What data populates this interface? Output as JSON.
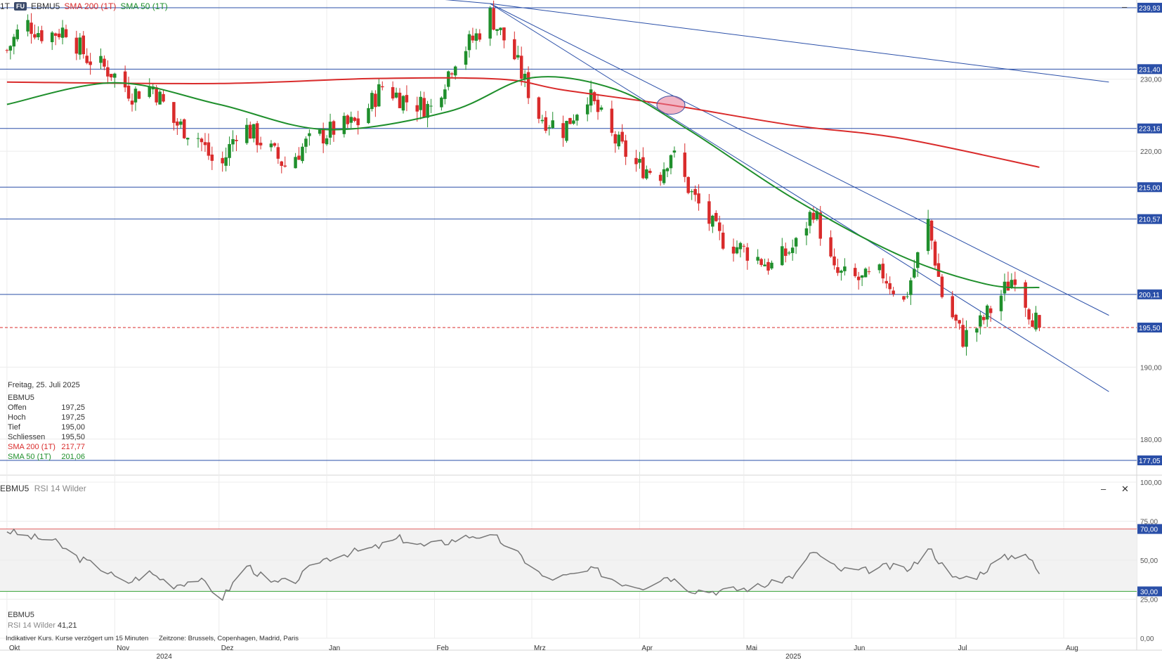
{
  "header": {
    "timeframe": "1T",
    "badge": "FU",
    "symbol": "EBMU5",
    "sma200_label": "SMA 200 (1T)",
    "sma50_label": "SMA 50 (1T)"
  },
  "colors": {
    "up": "#1f8f2c",
    "down": "#d92b2b",
    "sma200": "#d92b2b",
    "sma50": "#1f8f2c",
    "level_line": "#2a4fa8",
    "trend_line": "#2a4fa8",
    "rsi_line": "#777777",
    "rsi_upper": "#e06060",
    "rsi_lower": "#3aa43a"
  },
  "info_panel": {
    "date": "Freitag, 25. Juli 2025",
    "symbol": "EBMU5",
    "rows": [
      {
        "label": "Offen",
        "value": "197,25"
      },
      {
        "label": "Hoch",
        "value": "197,25"
      },
      {
        "label": "Tief",
        "value": "195,00"
      },
      {
        "label": "Schliessen",
        "value": "195,50"
      },
      {
        "label": "SMA 200 (1T)",
        "value": "217,77"
      },
      {
        "label": "SMA 50 (1T)",
        "value": "201,06"
      }
    ]
  },
  "rsi_header": {
    "symbol": "EBMU5",
    "indicator": "RSI 14 Wilder"
  },
  "rsi_info": {
    "symbol": "EBMU5",
    "indicator": "RSI 14 Wilder",
    "value": "41,21"
  },
  "footer": {
    "note": "Indikativer Kurs. Kurse verzögert um 15 Minuten",
    "timezone": "Zeitzone: Brussels, Copenhagen, Madrid, Paris"
  },
  "controls": {
    "minimize": "–",
    "close": "✕"
  },
  "chart_data": [
    {
      "type": "candlestick",
      "yaxis": {
        "ylim": [
          175,
          241
        ],
        "ticks": [
          "230,00",
          "220,00",
          "190,00",
          "180,00"
        ],
        "tick_values": [
          230,
          220,
          190,
          180
        ]
      },
      "xaxis": {
        "labels": [
          {
            "label": "Okt",
            "date": "2024-10-01"
          },
          {
            "label": "Nov",
            "date": "2024-11-01"
          },
          {
            "label": "Dez",
            "date": "2024-12-01"
          },
          {
            "label": "Jan",
            "date": "2025-01-01"
          },
          {
            "label": "Feb",
            "date": "2025-02-01"
          },
          {
            "label": "Mrz",
            "date": "2025-03-01"
          },
          {
            "label": "Apr",
            "date": "2025-04-01"
          },
          {
            "label": "Mai",
            "date": "2025-05-01"
          },
          {
            "label": "Jun",
            "date": "2025-06-01"
          },
          {
            "label": "Jul",
            "date": "2025-07-01"
          },
          {
            "label": "Aug",
            "date": "2025-08-01"
          }
        ],
        "year_labels": [
          {
            "label": "2024",
            "date": "2024-11-15"
          },
          {
            "label": "2025",
            "date": "2025-05-15"
          }
        ]
      },
      "horizontal_levels": [
        {
          "value": 239.93,
          "label": "239,93"
        },
        {
          "value": 231.4,
          "label": "231,40"
        },
        {
          "value": 223.16,
          "label": "223,16"
        },
        {
          "value": 215.0,
          "label": "215,00"
        },
        {
          "value": 210.57,
          "label": "210,57"
        },
        {
          "value": 200.11,
          "label": "200,11"
        },
        {
          "value": 177.05,
          "label": "177,05"
        }
      ],
      "last_price": {
        "value": 195.5,
        "label": "195,50"
      },
      "trend_lines": [
        {
          "from": {
            "date": "2024-12-20",
            "value": 243.0
          },
          "to": {
            "date": "2025-02-17",
            "value": 240.5
          }
        },
        {
          "from": {
            "date": "2025-02-17",
            "value": 240.5
          },
          "to": {
            "date": "2025-08-14",
            "value": 229.6
          }
        },
        {
          "from": {
            "date": "2025-02-17",
            "value": 240.5
          },
          "to": {
            "date": "2025-08-14",
            "value": 197.2
          }
        },
        {
          "from": {
            "date": "2025-02-17",
            "value": 240.5
          },
          "to": {
            "date": "2025-08-14",
            "value": 186.6
          }
        }
      ],
      "highlight": {
        "date": "2025-04-10",
        "value": 226.4
      },
      "anchors": [
        {
          "date": "2024-10-01",
          "close": 234
        },
        {
          "date": "2024-10-06",
          "close": 238
        },
        {
          "date": "2024-10-12",
          "close": 236
        },
        {
          "date": "2024-10-18",
          "close": 237
        },
        {
          "date": "2024-10-24",
          "close": 233
        },
        {
          "date": "2024-10-31",
          "close": 231
        },
        {
          "date": "2024-11-06",
          "close": 228
        },
        {
          "date": "2024-11-12",
          "close": 229
        },
        {
          "date": "2024-11-18",
          "close": 224
        },
        {
          "date": "2024-11-25",
          "close": 222
        },
        {
          "date": "2024-12-01",
          "close": 217
        },
        {
          "date": "2024-12-07",
          "close": 224
        },
        {
          "date": "2024-12-14",
          "close": 221
        },
        {
          "date": "2024-12-20",
          "close": 218
        },
        {
          "date": "2024-12-26",
          "close": 221
        },
        {
          "date": "2025-01-03",
          "close": 223
        },
        {
          "date": "2025-01-10",
          "close": 224
        },
        {
          "date": "2025-01-17",
          "close": 229
        },
        {
          "date": "2025-01-24",
          "close": 227
        },
        {
          "date": "2025-01-31",
          "close": 226
        },
        {
          "date": "2025-02-07",
          "close": 233
        },
        {
          "date": "2025-02-13",
          "close": 236
        },
        {
          "date": "2025-02-17",
          "close": 239
        },
        {
          "date": "2025-02-24",
          "close": 233
        },
        {
          "date": "2025-03-03",
          "close": 225
        },
        {
          "date": "2025-03-10",
          "close": 223
        },
        {
          "date": "2025-03-17",
          "close": 228
        },
        {
          "date": "2025-03-24",
          "close": 222
        },
        {
          "date": "2025-03-31",
          "close": 218
        },
        {
          "date": "2025-04-07",
          "close": 217
        },
        {
          "date": "2025-04-10",
          "close": 220
        },
        {
          "date": "2025-04-16",
          "close": 214
        },
        {
          "date": "2025-04-24",
          "close": 208
        },
        {
          "date": "2025-05-02",
          "close": 206
        },
        {
          "date": "2025-05-09",
          "close": 204
        },
        {
          "date": "2025-05-16",
          "close": 207
        },
        {
          "date": "2025-05-21",
          "close": 212
        },
        {
          "date": "2025-05-27",
          "close": 203
        },
        {
          "date": "2025-06-04",
          "close": 202
        },
        {
          "date": "2025-06-10",
          "close": 203
        },
        {
          "date": "2025-06-16",
          "close": 199
        },
        {
          "date": "2025-06-23",
          "close": 210
        },
        {
          "date": "2025-06-27",
          "close": 200
        },
        {
          "date": "2025-07-03",
          "close": 194
        },
        {
          "date": "2025-07-08",
          "close": 196
        },
        {
          "date": "2025-07-14",
          "close": 200
        },
        {
          "date": "2025-07-18",
          "close": 203
        },
        {
          "date": "2025-07-22",
          "close": 198
        },
        {
          "date": "2025-07-25",
          "close": 195.5
        }
      ],
      "sma200": [
        {
          "date": "2024-10-01",
          "value": 229.6
        },
        {
          "date": "2024-12-01",
          "value": 229.4
        },
        {
          "date": "2025-01-15",
          "value": 230.1
        },
        {
          "date": "2025-02-20",
          "value": 230.0
        },
        {
          "date": "2025-03-10",
          "value": 228.5
        },
        {
          "date": "2025-04-10",
          "value": 226.4
        },
        {
          "date": "2025-05-15",
          "value": 223.6
        },
        {
          "date": "2025-06-15",
          "value": 221.8
        },
        {
          "date": "2025-07-25",
          "value": 217.77
        }
      ],
      "sma50": [
        {
          "date": "2024-10-01",
          "value": 226.5
        },
        {
          "date": "2024-11-01",
          "value": 229.5
        },
        {
          "date": "2024-12-01",
          "value": 226.5
        },
        {
          "date": "2025-01-01",
          "value": 223.0
        },
        {
          "date": "2025-02-05",
          "value": 225.5
        },
        {
          "date": "2025-03-01",
          "value": 230.2
        },
        {
          "date": "2025-03-25",
          "value": 228.6
        },
        {
          "date": "2025-04-15",
          "value": 223.0
        },
        {
          "date": "2025-05-15",
          "value": 213.5
        },
        {
          "date": "2025-06-15",
          "value": 205.5
        },
        {
          "date": "2025-07-10",
          "value": 201.5
        },
        {
          "date": "2025-07-25",
          "value": 201.06
        }
      ]
    },
    {
      "type": "line",
      "title": "RSI 14 Wilder",
      "ylim": [
        0,
        100
      ],
      "ticks": [
        "100,00",
        "75,00",
        "50,00",
        "25,00",
        "0,00"
      ],
      "tick_values": [
        100,
        75,
        50,
        25,
        0
      ],
      "levels": [
        {
          "value": 70,
          "label": "70,00"
        },
        {
          "value": 30,
          "label": "30,00"
        }
      ],
      "last_value": 41.21,
      "anchors": [
        {
          "date": "2024-10-01",
          "value": 69
        },
        {
          "date": "2024-10-07",
          "value": 65
        },
        {
          "date": "2024-10-14",
          "value": 63
        },
        {
          "date": "2024-10-21",
          "value": 52
        },
        {
          "date": "2024-10-28",
          "value": 45
        },
        {
          "date": "2024-11-04",
          "value": 35
        },
        {
          "date": "2024-11-11",
          "value": 42
        },
        {
          "date": "2024-11-18",
          "value": 34
        },
        {
          "date": "2024-11-25",
          "value": 38
        },
        {
          "date": "2024-12-02",
          "value": 26
        },
        {
          "date": "2024-12-09",
          "value": 47
        },
        {
          "date": "2024-12-16",
          "value": 35
        },
        {
          "date": "2024-12-23",
          "value": 37
        },
        {
          "date": "2024-12-30",
          "value": 50
        },
        {
          "date": "2025-01-08",
          "value": 55
        },
        {
          "date": "2025-01-15",
          "value": 58
        },
        {
          "date": "2025-01-22",
          "value": 64
        },
        {
          "date": "2025-01-29",
          "value": 59
        },
        {
          "date": "2025-02-05",
          "value": 62
        },
        {
          "date": "2025-02-12",
          "value": 66
        },
        {
          "date": "2025-02-19",
          "value": 64
        },
        {
          "date": "2025-02-26",
          "value": 52
        },
        {
          "date": "2025-03-05",
          "value": 38
        },
        {
          "date": "2025-03-12",
          "value": 40
        },
        {
          "date": "2025-03-19",
          "value": 44
        },
        {
          "date": "2025-03-26",
          "value": 36
        },
        {
          "date": "2025-04-02",
          "value": 33
        },
        {
          "date": "2025-04-09",
          "value": 40
        },
        {
          "date": "2025-04-16",
          "value": 31
        },
        {
          "date": "2025-04-24",
          "value": 30
        },
        {
          "date": "2025-05-02",
          "value": 32
        },
        {
          "date": "2025-05-09",
          "value": 35
        },
        {
          "date": "2025-05-16",
          "value": 41
        },
        {
          "date": "2025-05-21",
          "value": 56
        },
        {
          "date": "2025-05-28",
          "value": 44
        },
        {
          "date": "2025-06-04",
          "value": 43
        },
        {
          "date": "2025-06-11",
          "value": 46
        },
        {
          "date": "2025-06-18",
          "value": 44
        },
        {
          "date": "2025-06-23",
          "value": 59
        },
        {
          "date": "2025-06-30",
          "value": 38
        },
        {
          "date": "2025-07-07",
          "value": 40
        },
        {
          "date": "2025-07-14",
          "value": 51
        },
        {
          "date": "2025-07-21",
          "value": 55
        },
        {
          "date": "2025-07-25",
          "value": 41.21
        }
      ]
    }
  ]
}
